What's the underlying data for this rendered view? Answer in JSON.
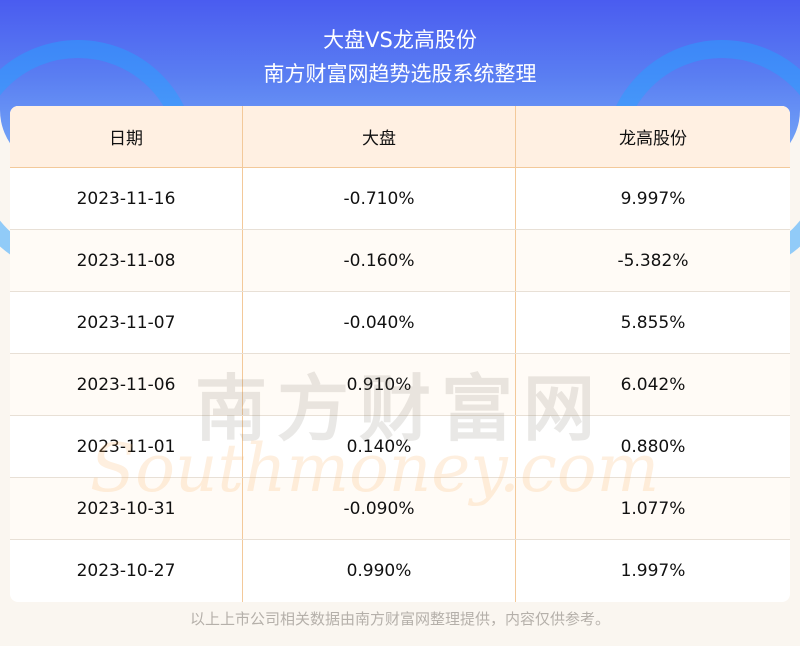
{
  "header": {
    "title": "大盘VS龙高股份",
    "subtitle": "南方财富网趋势选股系统整理"
  },
  "table": {
    "columns": [
      "日期",
      "大盘",
      "龙高股份"
    ],
    "rows": [
      [
        "2023-11-16",
        "-0.710%",
        "9.997%"
      ],
      [
        "2023-11-08",
        "-0.160%",
        "-5.382%"
      ],
      [
        "2023-11-07",
        "-0.040%",
        "5.855%"
      ],
      [
        "2023-11-06",
        "0.910%",
        "6.042%"
      ],
      [
        "2023-11-01",
        "0.140%",
        "0.880%"
      ],
      [
        "2023-10-31",
        "-0.090%",
        "1.077%"
      ],
      [
        "2023-10-27",
        "0.990%",
        "1.997%"
      ]
    ]
  },
  "watermark": {
    "cn": "南方财富网",
    "en": "Southmoney.com"
  },
  "footer": "以上上市公司相关数据由南方财富网整理提供，内容仅供参考。",
  "colors": {
    "header_bg": "#4a5cf0",
    "table_head_bg": "#fff0e2",
    "divider": "#f3c99a"
  }
}
